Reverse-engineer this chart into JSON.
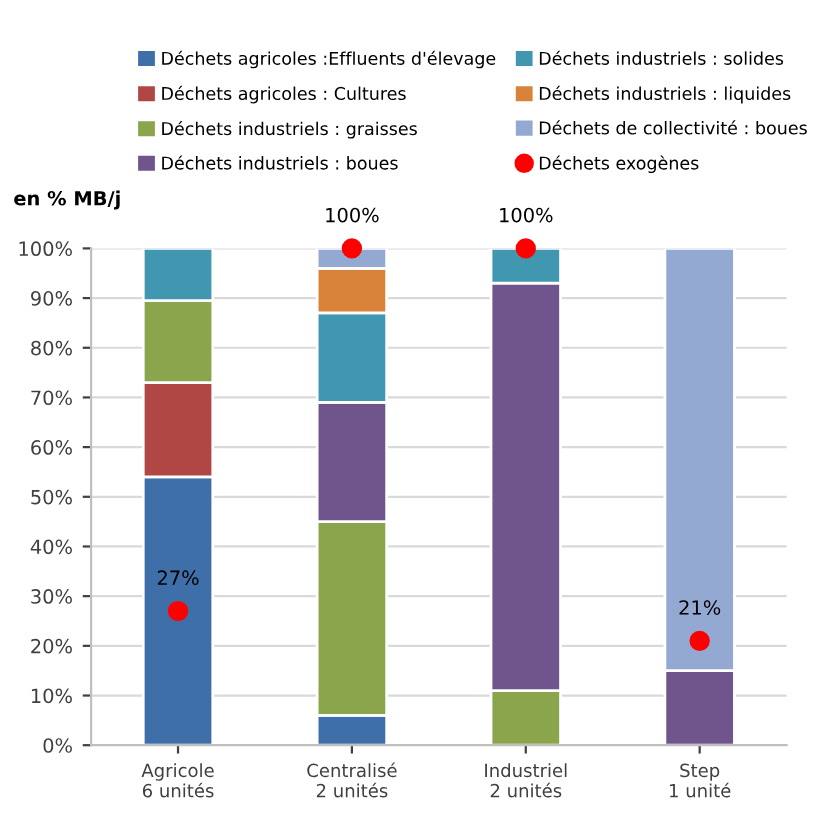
{
  "chart_data": {
    "type": "bar",
    "stacked": true,
    "ylabel": "en % MB/j",
    "categories": [
      "Agricole\n6 unités",
      "Centralisé\n2 unités",
      "Industriel\n2 unités",
      "Step\n1 unité"
    ],
    "series": [
      {
        "name": "Déchets agricoles :Effluents d'élevage",
        "color": "#3f6fa8",
        "values": [
          54,
          6,
          null,
          null
        ]
      },
      {
        "name": "Déchets agricoles : Cultures",
        "color": "#b04745",
        "values": [
          19,
          null,
          null,
          null
        ]
      },
      {
        "name": "Déchets industriels : graisses",
        "color": "#8aa54b",
        "values": [
          16.5,
          39,
          11,
          null
        ]
      },
      {
        "name": "Déchets industriels : boues",
        "color": "#6f558c",
        "values": [
          null,
          24,
          82,
          15
        ]
      },
      {
        "name": "Déchets industriels : solides",
        "color": "#4197b0",
        "values": [
          10.5,
          18,
          7,
          null
        ]
      },
      {
        "name": "Déchets industriels : liquides",
        "color": "#d9823a",
        "values": [
          null,
          9,
          null,
          null
        ]
      },
      {
        "name": "Déchets de collectivité : boues",
        "color": "#93a9d2",
        "values": [
          null,
          4,
          null,
          85
        ]
      },
      {
        "name": "Déchets exogènes",
        "type": "scatter",
        "color": "#ff0000",
        "x": [
          "Agricole\n6 unités",
          "Centralisé\n2 unités",
          "Industriel\n2 unités",
          "Step\n1 unité"
        ],
        "values": [
          27,
          100,
          100,
          21
        ],
        "value_labels": [
          "27%",
          "100%",
          "100%",
          "21%"
        ]
      }
    ],
    "ylim": [
      0,
      100
    ],
    "yticks": [
      {
        "value": 0,
        "label": "0%"
      },
      {
        "value": 10,
        "label": "10%"
      },
      {
        "value": 20,
        "label": "20%"
      },
      {
        "value": 30,
        "label": "30%"
      },
      {
        "value": 40,
        "label": "40%"
      },
      {
        "value": 50,
        "label": "50%"
      },
      {
        "value": 60,
        "label": "60%"
      },
      {
        "value": 70,
        "label": "70%"
      },
      {
        "value": 80,
        "label": "80%"
      },
      {
        "value": 90,
        "label": "90%"
      },
      {
        "value": 100,
        "label": "100%"
      }
    ],
    "grid": "y",
    "legend": "top",
    "marker": "circle"
  }
}
